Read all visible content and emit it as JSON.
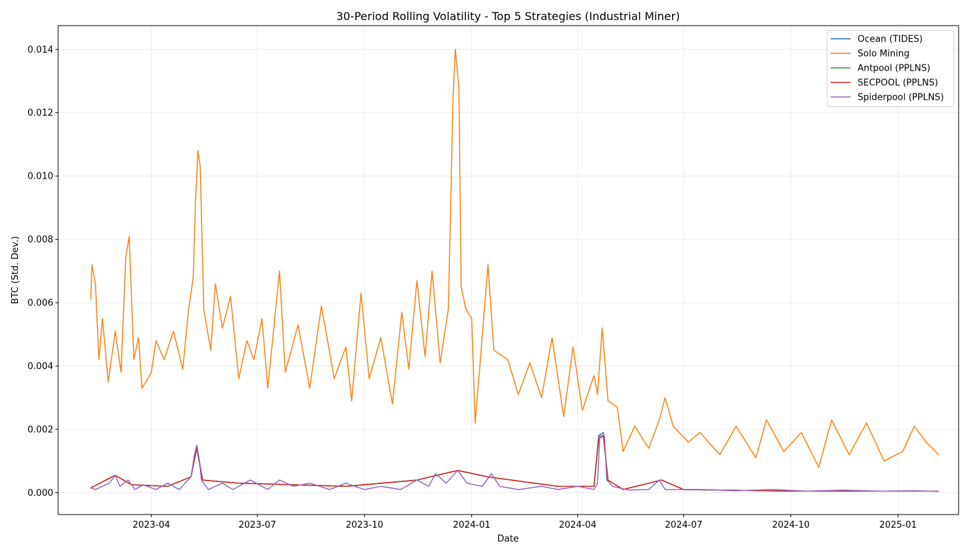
{
  "chart_data": {
    "type": "line",
    "title": "30-Period Rolling Volatility - Top 5 Strategies (Industrial Miner)",
    "xlabel": "Date",
    "ylabel": "BTC (Std. Dev.)",
    "xlim": [
      "2023-01-11",
      "2025-02-22"
    ],
    "ylim": [
      -0.00069,
      0.01475
    ],
    "x_ticks": [
      "2023-04-01",
      "2023-07-01",
      "2023-10-01",
      "2024-01-01",
      "2024-04-01",
      "2024-07-01",
      "2024-10-01",
      "2025-01-01"
    ],
    "x_tick_labels": [
      "2023-04",
      "2023-07",
      "2023-10",
      "2024-01",
      "2024-04",
      "2024-07",
      "2024-10",
      "2025-01"
    ],
    "y_ticks": [
      0.0,
      0.002,
      0.004,
      0.006,
      0.008,
      0.01,
      0.012,
      0.014
    ],
    "y_tick_labels": [
      "0.000",
      "0.002",
      "0.004",
      "0.006",
      "0.008",
      "0.010",
      "0.012",
      "0.014"
    ],
    "grid": true,
    "legend": "top-right",
    "series": [
      {
        "name": "Ocean (TIDES)",
        "color": "#1f77b4",
        "points": [
          [
            "2023-02-08",
            0.00015
          ],
          [
            "2023-03-01",
            0.00055
          ],
          [
            "2023-03-15",
            0.00025
          ],
          [
            "2023-04-15",
            0.0002
          ],
          [
            "2023-05-05",
            0.0005
          ],
          [
            "2023-05-10",
            0.0015
          ],
          [
            "2023-05-15",
            0.0004
          ],
          [
            "2023-06-15",
            0.0003
          ],
          [
            "2023-09-15",
            0.0002
          ],
          [
            "2023-11-15",
            0.0004
          ],
          [
            "2023-12-20",
            0.0007
          ],
          [
            "2024-01-15",
            0.0005
          ],
          [
            "2024-03-15",
            0.0002
          ],
          [
            "2024-04-15",
            0.0002
          ],
          [
            "2024-04-19",
            0.0018
          ],
          [
            "2024-04-23",
            0.0019
          ],
          [
            "2024-04-27",
            0.0004
          ],
          [
            "2024-05-10",
            0.0001
          ],
          [
            "2024-06-12",
            0.0004
          ],
          [
            "2024-07-01",
            0.0001
          ],
          [
            "2024-10-01",
            5e-05
          ],
          [
            "2025-02-05",
            5e-05
          ]
        ]
      },
      {
        "name": "Solo Mining",
        "color": "#ff7f0e",
        "points": [
          [
            "2023-02-08",
            0.0061
          ],
          [
            "2023-02-09",
            0.0072
          ],
          [
            "2023-02-12",
            0.0066
          ],
          [
            "2023-02-15",
            0.0042
          ],
          [
            "2023-02-18",
            0.0055
          ],
          [
            "2023-02-23",
            0.0035
          ],
          [
            "2023-03-01",
            0.0051
          ],
          [
            "2023-03-06",
            0.0038
          ],
          [
            "2023-03-10",
            0.0074
          ],
          [
            "2023-03-13",
            0.0081
          ],
          [
            "2023-03-17",
            0.0042
          ],
          [
            "2023-03-21",
            0.0049
          ],
          [
            "2023-03-24",
            0.0033
          ],
          [
            "2023-04-01",
            0.0038
          ],
          [
            "2023-04-05",
            0.0048
          ],
          [
            "2023-04-12",
            0.0042
          ],
          [
            "2023-04-20",
            0.0051
          ],
          [
            "2023-04-28",
            0.0039
          ],
          [
            "2023-05-03",
            0.0058
          ],
          [
            "2023-05-07",
            0.0068
          ],
          [
            "2023-05-09",
            0.0093
          ],
          [
            "2023-05-11",
            0.0108
          ],
          [
            "2023-05-13",
            0.0103
          ],
          [
            "2023-05-16",
            0.0058
          ],
          [
            "2023-05-22",
            0.0045
          ],
          [
            "2023-05-26",
            0.0066
          ],
          [
            "2023-06-01",
            0.0052
          ],
          [
            "2023-06-08",
            0.0062
          ],
          [
            "2023-06-15",
            0.0036
          ],
          [
            "2023-06-22",
            0.0048
          ],
          [
            "2023-06-28",
            0.0042
          ],
          [
            "2023-07-05",
            0.0055
          ],
          [
            "2023-07-10",
            0.0033
          ],
          [
            "2023-07-20",
            0.007
          ],
          [
            "2023-07-25",
            0.0038
          ],
          [
            "2023-08-05",
            0.0053
          ],
          [
            "2023-08-15",
            0.0033
          ],
          [
            "2023-08-25",
            0.0059
          ],
          [
            "2023-09-05",
            0.0036
          ],
          [
            "2023-09-15",
            0.0046
          ],
          [
            "2023-09-20",
            0.0029
          ],
          [
            "2023-09-28",
            0.0063
          ],
          [
            "2023-10-05",
            0.0036
          ],
          [
            "2023-10-15",
            0.0049
          ],
          [
            "2023-10-25",
            0.0028
          ],
          [
            "2023-11-02",
            0.0057
          ],
          [
            "2023-11-08",
            0.0039
          ],
          [
            "2023-11-15",
            0.0067
          ],
          [
            "2023-11-22",
            0.0043
          ],
          [
            "2023-11-28",
            0.007
          ],
          [
            "2023-12-05",
            0.0041
          ],
          [
            "2023-12-12",
            0.0058
          ],
          [
            "2023-12-16",
            0.0125
          ],
          [
            "2023-12-18",
            0.014
          ],
          [
            "2023-12-21",
            0.0128
          ],
          [
            "2023-12-23",
            0.0065
          ],
          [
            "2023-12-27",
            0.0058
          ],
          [
            "2024-01-01",
            0.0055
          ],
          [
            "2024-01-04",
            0.0022
          ],
          [
            "2024-01-08",
            0.004
          ],
          [
            "2024-01-15",
            0.0072
          ],
          [
            "2024-01-20",
            0.0045
          ],
          [
            "2024-02-01",
            0.0042
          ],
          [
            "2024-02-10",
            0.0031
          ],
          [
            "2024-02-20",
            0.0041
          ],
          [
            "2024-03-01",
            0.003
          ],
          [
            "2024-03-10",
            0.0049
          ],
          [
            "2024-03-20",
            0.0024
          ],
          [
            "2024-03-28",
            0.0046
          ],
          [
            "2024-04-05",
            0.0026
          ],
          [
            "2024-04-15",
            0.0037
          ],
          [
            "2024-04-18",
            0.0031
          ],
          [
            "2024-04-22",
            0.0052
          ],
          [
            "2024-04-27",
            0.0029
          ],
          [
            "2024-05-05",
            0.0027
          ],
          [
            "2024-05-10",
            0.0013
          ],
          [
            "2024-05-20",
            0.0021
          ],
          [
            "2024-06-01",
            0.0014
          ],
          [
            "2024-06-10",
            0.0023
          ],
          [
            "2024-06-15",
            0.003
          ],
          [
            "2024-06-22",
            0.0021
          ],
          [
            "2024-07-05",
            0.0016
          ],
          [
            "2024-07-15",
            0.0019
          ],
          [
            "2024-08-01",
            0.0012
          ],
          [
            "2024-08-15",
            0.0021
          ],
          [
            "2024-09-01",
            0.0011
          ],
          [
            "2024-09-10",
            0.0023
          ],
          [
            "2024-09-25",
            0.0013
          ],
          [
            "2024-10-10",
            0.0019
          ],
          [
            "2024-10-25",
            0.0008
          ],
          [
            "2024-11-05",
            0.0023
          ],
          [
            "2024-11-20",
            0.0012
          ],
          [
            "2024-12-05",
            0.0022
          ],
          [
            "2024-12-20",
            0.001
          ],
          [
            "2025-01-05",
            0.0013
          ],
          [
            "2025-01-15",
            0.0021
          ],
          [
            "2025-01-25",
            0.0016
          ],
          [
            "2025-02-05",
            0.0012
          ]
        ]
      },
      {
        "name": "Antpool (PPLNS)",
        "color": "#2ca02c",
        "points": [
          [
            "2023-02-08",
            0.00015
          ],
          [
            "2023-03-01",
            0.00055
          ],
          [
            "2023-03-15",
            0.00025
          ],
          [
            "2023-04-15",
            0.0002
          ],
          [
            "2023-05-05",
            0.0005
          ],
          [
            "2023-05-10",
            0.0014
          ],
          [
            "2023-05-15",
            0.0004
          ],
          [
            "2023-06-15",
            0.0003
          ],
          [
            "2023-09-15",
            0.0002
          ],
          [
            "2023-11-15",
            0.0004
          ],
          [
            "2023-12-20",
            0.0007
          ],
          [
            "2024-01-15",
            0.0005
          ],
          [
            "2024-03-15",
            0.0002
          ],
          [
            "2024-04-15",
            0.0002
          ],
          [
            "2024-04-19",
            0.0017
          ],
          [
            "2024-04-23",
            0.0018
          ],
          [
            "2024-04-27",
            0.0004
          ],
          [
            "2024-05-10",
            0.0001
          ],
          [
            "2024-06-12",
            0.0004
          ],
          [
            "2024-07-01",
            0.0001
          ],
          [
            "2024-10-01",
            5e-05
          ],
          [
            "2025-02-05",
            5e-05
          ]
        ]
      },
      {
        "name": "SECPOOL (PPLNS)",
        "color": "#d62728",
        "points": [
          [
            "2023-02-08",
            0.00015
          ],
          [
            "2023-03-01",
            0.00055
          ],
          [
            "2023-03-15",
            0.00025
          ],
          [
            "2023-04-15",
            0.0002
          ],
          [
            "2023-05-05",
            0.0005
          ],
          [
            "2023-05-10",
            0.0014
          ],
          [
            "2023-05-15",
            0.0004
          ],
          [
            "2023-06-15",
            0.0003
          ],
          [
            "2023-09-15",
            0.0002
          ],
          [
            "2023-11-15",
            0.0004
          ],
          [
            "2023-12-20",
            0.0007
          ],
          [
            "2024-01-15",
            0.0005
          ],
          [
            "2024-03-15",
            0.0002
          ],
          [
            "2024-04-15",
            0.0002
          ],
          [
            "2024-04-19",
            0.0017
          ],
          [
            "2024-04-23",
            0.0018
          ],
          [
            "2024-04-27",
            0.0004
          ],
          [
            "2024-05-10",
            0.0001
          ],
          [
            "2024-06-12",
            0.0004
          ],
          [
            "2024-07-01",
            0.0001
          ],
          [
            "2024-10-01",
            5e-05
          ],
          [
            "2025-02-05",
            5e-05
          ]
        ]
      },
      {
        "name": "Spiderpool (PPLNS)",
        "color": "#9467bd",
        "points": [
          [
            "2023-02-08",
            0.00015
          ],
          [
            "2023-02-12",
            0.0001
          ],
          [
            "2023-02-18",
            0.0002
          ],
          [
            "2023-02-24",
            0.0003
          ],
          [
            "2023-03-01",
            0.00055
          ],
          [
            "2023-03-05",
            0.0002
          ],
          [
            "2023-03-12",
            0.0004
          ],
          [
            "2023-03-18",
            0.0001
          ],
          [
            "2023-03-25",
            0.00025
          ],
          [
            "2023-04-05",
            0.0001
          ],
          [
            "2023-04-15",
            0.0003
          ],
          [
            "2023-04-25",
            0.0001
          ],
          [
            "2023-05-05",
            0.0005
          ],
          [
            "2023-05-08",
            0.0012
          ],
          [
            "2023-05-10",
            0.0015
          ],
          [
            "2023-05-12",
            0.0011
          ],
          [
            "2023-05-14",
            0.0004
          ],
          [
            "2023-05-20",
            0.0001
          ],
          [
            "2023-06-01",
            0.0003
          ],
          [
            "2023-06-10",
            0.0001
          ],
          [
            "2023-06-25",
            0.0004
          ],
          [
            "2023-07-10",
            0.0001
          ],
          [
            "2023-07-20",
            0.0004
          ],
          [
            "2023-08-01",
            0.0002
          ],
          [
            "2023-08-15",
            0.0003
          ],
          [
            "2023-09-01",
            0.0001
          ],
          [
            "2023-09-15",
            0.0003
          ],
          [
            "2023-10-01",
            0.0001
          ],
          [
            "2023-10-15",
            0.0002
          ],
          [
            "2023-11-01",
            0.0001
          ],
          [
            "2023-11-15",
            0.0004
          ],
          [
            "2023-11-25",
            0.0002
          ],
          [
            "2023-12-01",
            0.0006
          ],
          [
            "2023-12-10",
            0.0003
          ],
          [
            "2023-12-20",
            0.0007
          ],
          [
            "2023-12-28",
            0.0003
          ],
          [
            "2024-01-10",
            0.0002
          ],
          [
            "2024-01-18",
            0.0006
          ],
          [
            "2024-01-25",
            0.0002
          ],
          [
            "2024-02-10",
            0.0001
          ],
          [
            "2024-03-01",
            0.0002
          ],
          [
            "2024-03-15",
            0.0001
          ],
          [
            "2024-04-01",
            0.0002
          ],
          [
            "2024-04-15",
            0.0001
          ],
          [
            "2024-04-18",
            0.0003
          ],
          [
            "2024-04-20",
            0.0018
          ],
          [
            "2024-04-24",
            0.0018
          ],
          [
            "2024-04-26",
            0.0004
          ],
          [
            "2024-05-01",
            0.0002
          ],
          [
            "2024-05-15",
            8e-05
          ],
          [
            "2024-06-01",
            0.0001
          ],
          [
            "2024-06-10",
            0.0004
          ],
          [
            "2024-06-15",
            0.0001
          ],
          [
            "2024-07-15",
            0.0001
          ],
          [
            "2024-08-15",
            6e-05
          ],
          [
            "2024-09-15",
            0.0001
          ],
          [
            "2024-10-15",
            5e-05
          ],
          [
            "2024-11-15",
            8e-05
          ],
          [
            "2024-12-15",
            5e-05
          ],
          [
            "2025-01-15",
            6e-05
          ],
          [
            "2025-02-05",
            4e-05
          ]
        ]
      }
    ]
  }
}
